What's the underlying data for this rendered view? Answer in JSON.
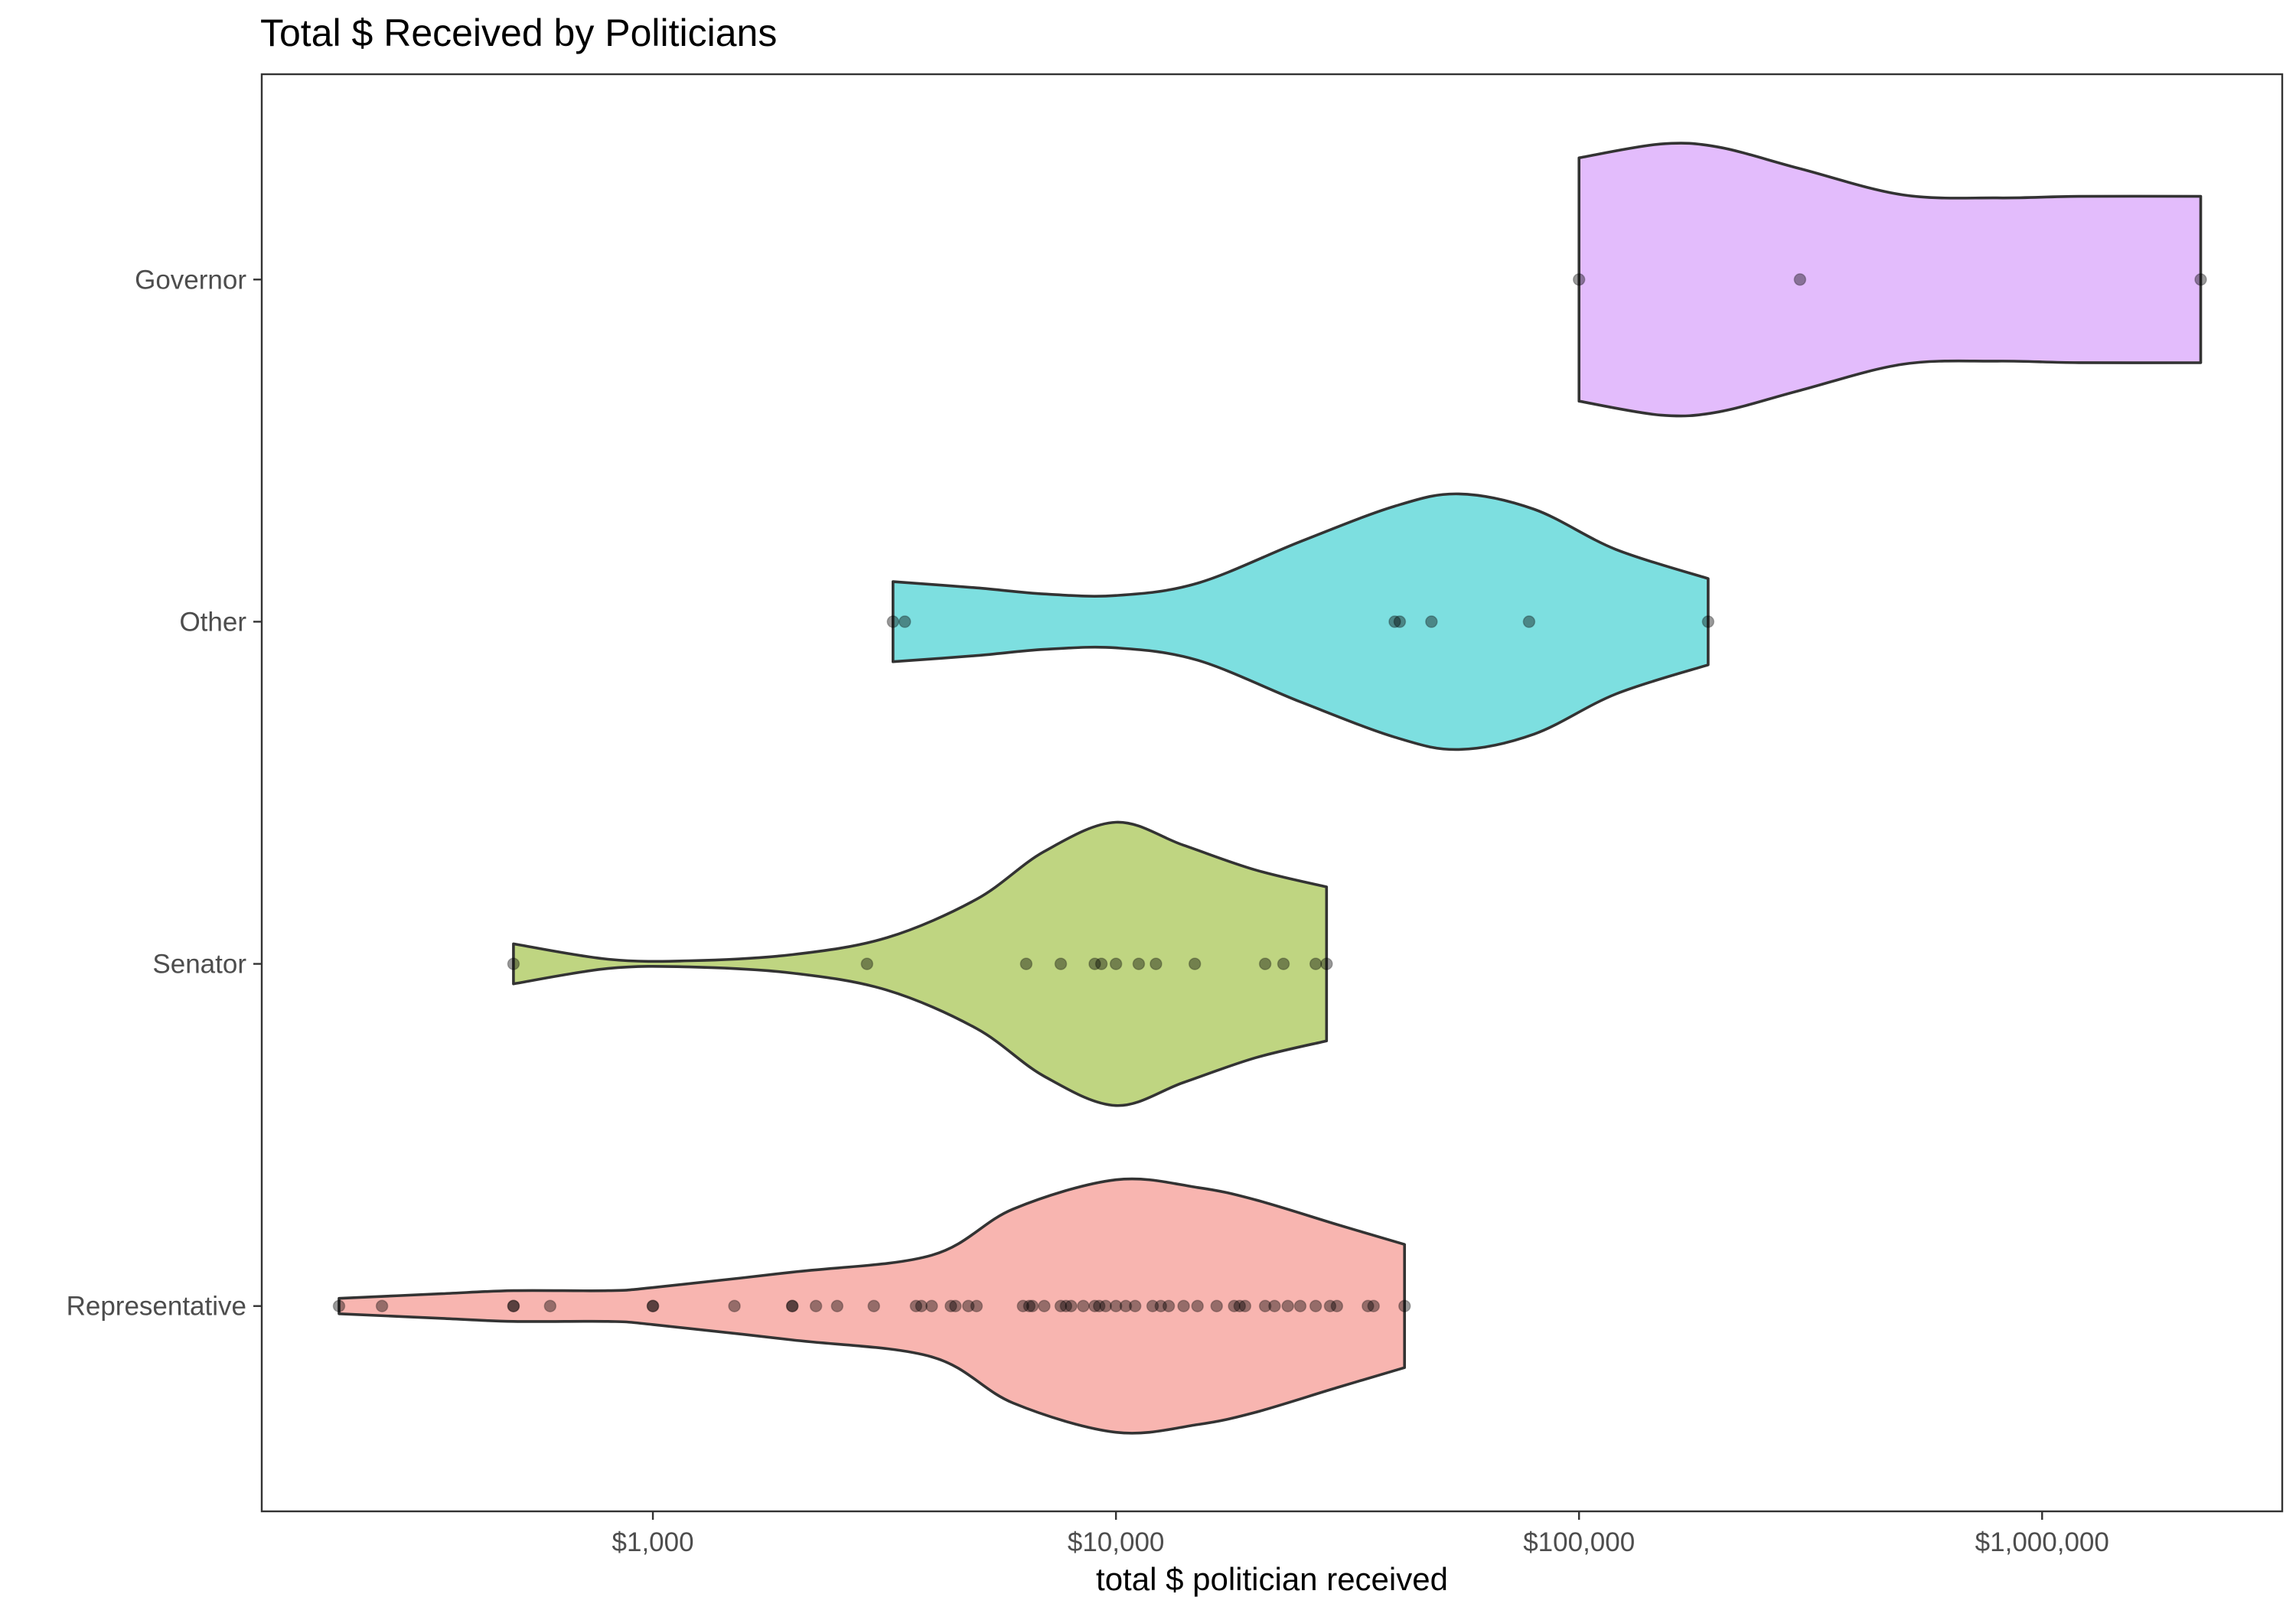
{
  "chart_data": {
    "type": "violin",
    "orientation": "horizontal",
    "title": "Total $ Received by Politicians",
    "xlabel": "total $ politician received",
    "ylabel": "",
    "xscale": "log10",
    "xlim": [
      143,
      3300000
    ],
    "xticks": [
      1000,
      10000,
      100000,
      1000000
    ],
    "xtick_labels": [
      "$1,000",
      "$10,000",
      "$100,000",
      "$1,000,000"
    ],
    "categories": [
      "Representative",
      "Senator",
      "Other",
      "Governor"
    ],
    "grid": false,
    "legend": "none",
    "colors": {
      "Representative": "#f8b5b0",
      "Senator": "#bfd581",
      "Other": "#7ddfe0",
      "Governor": "#e3bcfc"
    },
    "series": [
      {
        "name": "Governor",
        "points": [
          100000,
          300000,
          2200000
        ],
        "density": [
          [
            100000,
            0.79
          ],
          [
            150000,
            0.88
          ],
          [
            200000,
            0.86
          ],
          [
            300000,
            0.72
          ],
          [
            500000,
            0.55
          ],
          [
            800000,
            0.53
          ],
          [
            1200000,
            0.54
          ],
          [
            2200000,
            0.54
          ]
        ]
      },
      {
        "name": "Other",
        "points": [
          3300,
          3500,
          40000,
          41000,
          48000,
          78000,
          190000
        ],
        "density": [
          [
            3300,
            0.26
          ],
          [
            5000,
            0.22
          ],
          [
            7000,
            0.18
          ],
          [
            10000,
            0.17
          ],
          [
            15000,
            0.25
          ],
          [
            25000,
            0.52
          ],
          [
            40000,
            0.75
          ],
          [
            55000,
            0.83
          ],
          [
            80000,
            0.73
          ],
          [
            120000,
            0.47
          ],
          [
            190000,
            0.28
          ]
        ]
      },
      {
        "name": "Senator",
        "points": [
          500,
          2900,
          6400,
          7600,
          9000,
          9300,
          10000,
          11200,
          12200,
          14800,
          21000,
          23000,
          27000,
          28500
        ],
        "density": [
          [
            500,
            0.13
          ],
          [
            800,
            0.03
          ],
          [
            1200,
            0.02
          ],
          [
            2000,
            0.06
          ],
          [
            3200,
            0.17
          ],
          [
            5000,
            0.42
          ],
          [
            7000,
            0.73
          ],
          [
            10000,
            0.92
          ],
          [
            14000,
            0.77
          ],
          [
            20000,
            0.61
          ],
          [
            28500,
            0.5
          ]
        ]
      },
      {
        "name": "Representative",
        "points": [
          210,
          260,
          500,
          500,
          600,
          1000,
          1000,
          1500,
          2000,
          2000,
          2250,
          2500,
          3000,
          3700,
          3800,
          4000,
          4400,
          4500,
          4800,
          5000,
          6300,
          6500,
          6600,
          7000,
          7600,
          7800,
          8000,
          8500,
          9000,
          9200,
          9500,
          10000,
          10500,
          11000,
          12000,
          12500,
          13000,
          14000,
          15000,
          16500,
          18000,
          18500,
          19000,
          21000,
          22000,
          23500,
          25000,
          27000,
          29000,
          30000,
          35000,
          36000,
          42000
        ],
        "density": [
          [
            210,
            0.05
          ],
          [
            350,
            0.08
          ],
          [
            500,
            0.1
          ],
          [
            800,
            0.1
          ],
          [
            1000,
            0.12
          ],
          [
            2000,
            0.22
          ],
          [
            4000,
            0.33
          ],
          [
            6000,
            0.63
          ],
          [
            10000,
            0.82
          ],
          [
            15000,
            0.77
          ],
          [
            20000,
            0.69
          ],
          [
            30000,
            0.53
          ],
          [
            42000,
            0.4
          ]
        ]
      }
    ]
  }
}
